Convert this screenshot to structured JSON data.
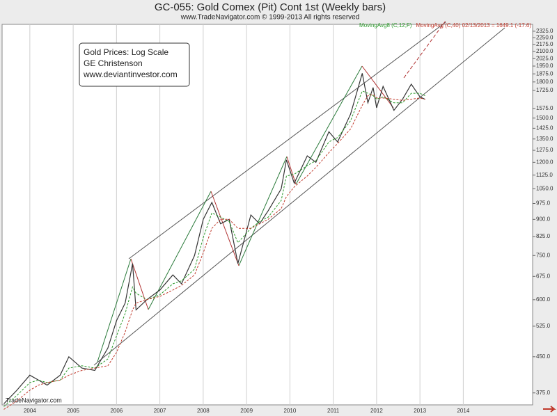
{
  "chart_data": {
    "type": "line",
    "title": "GC-055:  Gold Comex (Pit) Cont 1st  (Weekly bars)",
    "subtitle": "www.TradeNavigator.com © 1999-2013 All rights reserved",
    "source": "TradeNavigator.com",
    "annotation": [
      "Gold Prices:  Log Scale",
      "GE Christenson",
      "www.deviantinvestor.com"
    ],
    "y_scale": "log",
    "grid": true,
    "xlim": [
      2003.36,
      2015.6
    ],
    "xticks": [
      2004,
      2005,
      2006,
      2007,
      2008,
      2009,
      2010,
      2011,
      2012,
      2013,
      2014
    ],
    "ylim": [
      353,
      2407
    ],
    "yticks": [
      {
        "value": 2325,
        "label": "2325.0"
      },
      {
        "value": 2250,
        "label": "2250.0"
      },
      {
        "value": 2175,
        "label": "2175.0"
      },
      {
        "value": 2100,
        "label": "2100.0"
      },
      {
        "value": 2025,
        "label": "2025.0"
      },
      {
        "value": 1950,
        "label": "1950.0"
      },
      {
        "value": 1875,
        "label": "1875.0"
      },
      {
        "value": 1800,
        "label": "1800.0"
      },
      {
        "value": 1725,
        "label": "1725.0"
      },
      {
        "value": 1575,
        "label": "1575.0"
      },
      {
        "value": 1500,
        "label": "1500.0"
      },
      {
        "value": 1425,
        "label": "1425.0"
      },
      {
        "value": 1350,
        "label": "1350.0"
      },
      {
        "value": 1275,
        "label": "1275.0"
      },
      {
        "value": 1200,
        "label": "1200.0"
      },
      {
        "value": 1125,
        "label": "1125.0"
      },
      {
        "value": 1050,
        "label": "1050.0"
      },
      {
        "value": 975,
        "label": "975.0"
      },
      {
        "value": 900,
        "label": "900.0"
      },
      {
        "value": 825,
        "label": "825.0"
      },
      {
        "value": 750,
        "label": "750.0"
      },
      {
        "value": 675,
        "label": "675.0"
      },
      {
        "value": 600,
        "label": "600.0"
      },
      {
        "value": 525,
        "label": "525.0"
      },
      {
        "value": 450,
        "label": "450.0"
      },
      {
        "value": 375,
        "label": "375.0"
      }
    ],
    "x": [
      2003.4,
      2003.7,
      2004.0,
      2004.2,
      2004.4,
      2004.7,
      2004.9,
      2005.2,
      2005.5,
      2005.8,
      2006.0,
      2006.2,
      2006.37,
      2006.45,
      2006.7,
      2007.0,
      2007.3,
      2007.5,
      2007.8,
      2008.0,
      2008.2,
      2008.4,
      2008.6,
      2008.8,
      2009.1,
      2009.3,
      2009.5,
      2009.8,
      2009.92,
      2010.1,
      2010.4,
      2010.6,
      2010.9,
      2011.1,
      2011.4,
      2011.67,
      2011.8,
      2011.92,
      2012.0,
      2012.15,
      2012.4,
      2012.6,
      2012.8,
      2013.0,
      2013.12
    ],
    "series": [
      {
        "color": "#333333",
        "values": [
          355,
          380,
          410,
          400,
          390,
          410,
          450,
          425,
          420,
          470,
          540,
          590,
          720,
          570,
          600,
          630,
          680,
          650,
          750,
          900,
          980,
          880,
          900,
          720,
          920,
          880,
          940,
          1050,
          1215,
          1080,
          1240,
          1200,
          1400,
          1330,
          1530,
          1880,
          1620,
          1750,
          1580,
          1760,
          1560,
          1650,
          1780,
          1670,
          1649
        ]
      },
      {
        "name": "MovingAvg8 (C,12,F)",
        "color": "#2a9a2a",
        "values": [
          350,
          370,
          395,
          400,
          395,
          400,
          425,
          430,
          425,
          445,
          500,
          560,
          640,
          620,
          600,
          615,
          650,
          660,
          700,
          820,
          930,
          910,
          890,
          800,
          860,
          890,
          910,
          990,
          1120,
          1130,
          1180,
          1210,
          1330,
          1360,
          1480,
          1720,
          1700,
          1680,
          1650,
          1670,
          1620,
          1620,
          1700,
          1700,
          1680
        ]
      },
      {
        "name": "MovingAvg (C,40) 02/13/2013 = 1649.1 (-17.6)",
        "color": "#c0392b",
        "values": [
          345,
          360,
          380,
          390,
          395,
          400,
          410,
          420,
          425,
          430,
          460,
          510,
          570,
          590,
          600,
          610,
          630,
          645,
          680,
          760,
          860,
          900,
          900,
          860,
          860,
          880,
          900,
          950,
          1010,
          1060,
          1120,
          1170,
          1260,
          1320,
          1420,
          1600,
          1680,
          1690,
          1660,
          1660,
          1650,
          1640,
          1650,
          1660,
          1649.1
        ]
      }
    ]
  }
}
